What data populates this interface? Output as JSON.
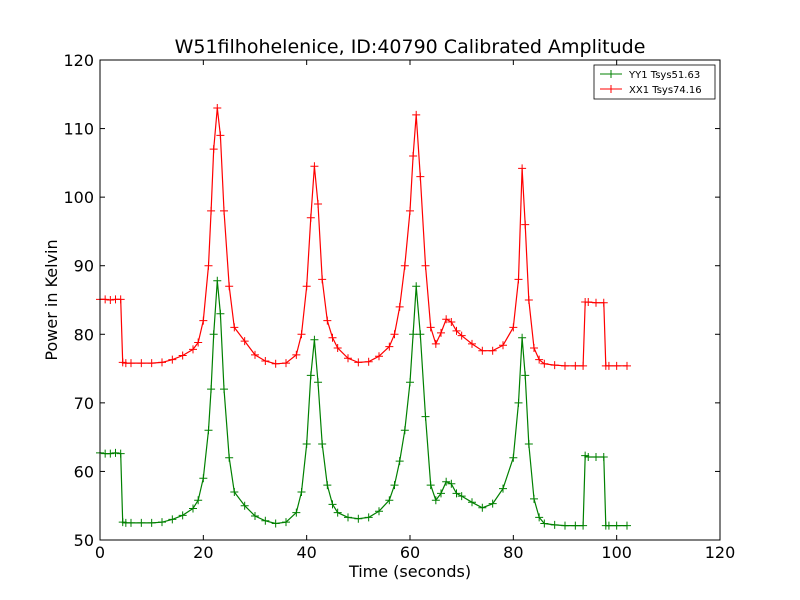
{
  "chart_data": {
    "type": "line",
    "title": "W51filhohelenice, ID:40790 Calibrated Amplitude",
    "xlabel": "Time (seconds)",
    "ylabel": "Power in Kelvin",
    "xlim": [
      0,
      120
    ],
    "ylim": [
      50,
      120
    ],
    "xticks": [
      "0",
      "20",
      "40",
      "60",
      "80",
      "100",
      "120"
    ],
    "yticks": [
      "50",
      "60",
      "70",
      "80",
      "90",
      "100",
      "110",
      "120"
    ],
    "grid": false,
    "legend_position": "top-right",
    "series": [
      {
        "name": "YY1 Tsys51.63",
        "color": "#008000",
        "marker": "+",
        "x": [
          0,
          1,
          2,
          3,
          4,
          4.4,
          5,
          6,
          8,
          10,
          12,
          14,
          16,
          18,
          19,
          20,
          21,
          21.5,
          22,
          22.7,
          23.3,
          24,
          25,
          26,
          28,
          30,
          32,
          34,
          36,
          38,
          39,
          40,
          40.8,
          41.5,
          42.2,
          43,
          44,
          45,
          46,
          48,
          50,
          52,
          54,
          56,
          57,
          58,
          59,
          60,
          60.6,
          61.2,
          62,
          63,
          64,
          65,
          66,
          67,
          68,
          69,
          70,
          72,
          74,
          76,
          78,
          80,
          81,
          81.7,
          82.3,
          83,
          84,
          85,
          86,
          88,
          90,
          92,
          93.5,
          93.9,
          94.5,
          96,
          97.5,
          97.9,
          98.5,
          100,
          102
        ],
        "y": [
          62.7,
          62.6,
          62.6,
          62.7,
          62.6,
          52.6,
          52.5,
          52.5,
          52.5,
          52.5,
          52.6,
          53.0,
          53.6,
          54.6,
          55.8,
          59,
          66,
          72,
          80,
          87.8,
          83,
          72,
          62,
          57,
          55,
          53.5,
          52.8,
          52.4,
          52.6,
          54,
          57,
          64,
          74,
          79.2,
          73,
          64,
          58,
          55.2,
          54,
          53.3,
          53.1,
          53.3,
          54.2,
          55.8,
          58,
          61.5,
          66,
          73,
          80,
          87,
          80,
          68,
          58,
          55.8,
          56.8,
          58.5,
          58.2,
          56.8,
          56.4,
          55.5,
          54.7,
          55.3,
          57.5,
          62,
          70,
          79.5,
          74,
          64,
          56,
          53.3,
          52.4,
          52.2,
          52.1,
          52.1,
          52.1,
          62.3,
          62.1,
          62.1,
          62.1,
          52.1,
          52.1,
          52.1,
          52.1
        ]
      },
      {
        "name": "XX1 Tsys74.16",
        "color": "#ff0000",
        "marker": "+",
        "x": [
          0,
          1,
          2,
          3,
          4,
          4.4,
          5,
          6,
          8,
          10,
          12,
          14,
          16,
          18,
          19,
          20,
          21,
          21.5,
          22,
          22.7,
          23.3,
          24,
          25,
          26,
          28,
          30,
          32,
          34,
          36,
          38,
          39,
          40,
          40.8,
          41.5,
          42.2,
          43,
          44,
          45,
          46,
          48,
          50,
          52,
          54,
          56,
          57,
          58,
          59,
          60,
          60.6,
          61.2,
          62,
          63,
          64,
          65,
          66,
          67,
          68,
          69,
          70,
          72,
          74,
          76,
          78,
          80,
          81,
          81.7,
          82.3,
          83,
          84,
          85,
          86,
          88,
          90,
          92,
          93.5,
          93.9,
          94.5,
          96,
          97.5,
          97.9,
          98.5,
          100,
          102
        ],
        "y": [
          85.1,
          85.1,
          85.0,
          85.1,
          85.1,
          75.9,
          75.8,
          75.8,
          75.8,
          75.8,
          75.9,
          76.3,
          76.9,
          77.8,
          78.8,
          82,
          90,
          98,
          107,
          113,
          109,
          98,
          87,
          81,
          79,
          77,
          76.1,
          75.7,
          75.8,
          77,
          80,
          87,
          97,
          104.5,
          99,
          88,
          82,
          79.5,
          78,
          76.5,
          75.9,
          76.0,
          76.8,
          78.2,
          80,
          84,
          90,
          98,
          106,
          112,
          103,
          90,
          81,
          78.6,
          80.2,
          82.2,
          81.8,
          80.5,
          79.8,
          78.6,
          77.6,
          77.6,
          78.4,
          81,
          88,
          104.2,
          96,
          85,
          78,
          76.3,
          75.7,
          75.5,
          75.4,
          75.4,
          75.4,
          84.7,
          84.7,
          84.6,
          84.6,
          75.4,
          75.4,
          75.4,
          75.4
        ]
      }
    ]
  }
}
